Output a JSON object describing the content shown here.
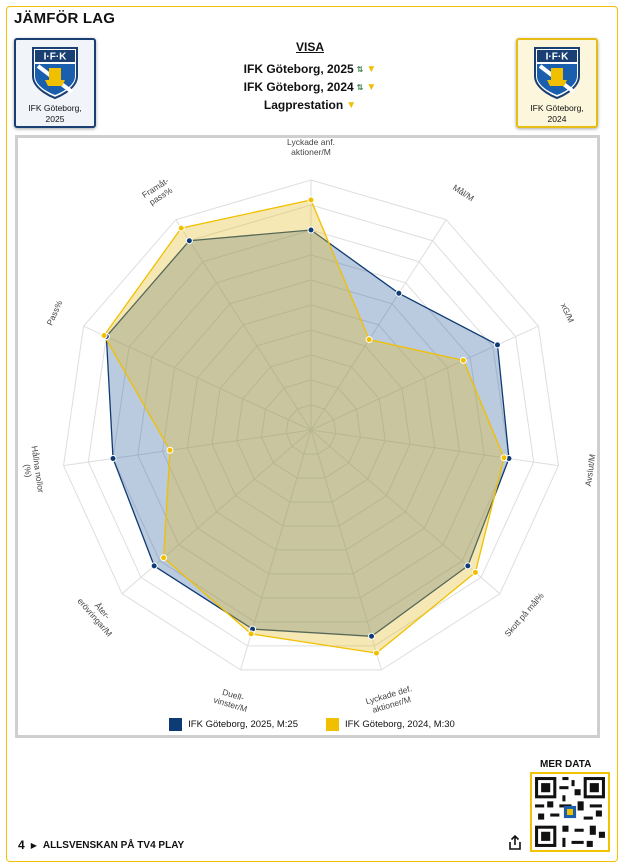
{
  "page": {
    "title": "JÄMFÖR LAG"
  },
  "teams": {
    "left": {
      "label": "IFK Göteborg, 2025",
      "crest_text": "I·F·K"
    },
    "right": {
      "label": "IFK Göteborg, 2024",
      "crest_text": "I·F·K"
    }
  },
  "visa": {
    "heading": "VISA",
    "rows": [
      {
        "label": "IFK Göteborg, 2025",
        "icon": "sort-icon"
      },
      {
        "label": "IFK Göteborg, 2024",
        "icon": "sort-icon"
      },
      {
        "label": "Lagprestation",
        "icon": "dropdown-icon"
      }
    ]
  },
  "chart_data": {
    "type": "radar",
    "axes": [
      "Lyckade anf. aktioner/M",
      "Mål/M",
      "xG/M",
      "Avslut/M",
      "Skott på mål%",
      "Lyckade def. aktioner/M",
      "Duell- vinster/M",
      "Åter- erövringar/M",
      "Hållna nollor (%)",
      "Pass%",
      "Framåt- pass%"
    ],
    "rmax": 10,
    "rings": 10,
    "series": [
      {
        "name": "IFK Göteborg, 2025",
        "color": "#0d3b73",
        "values": [
          8.0,
          6.5,
          8.2,
          8.0,
          8.3,
          8.6,
          8.3,
          8.3,
          8.0,
          9.0,
          9.0
        ]
      },
      {
        "name": "IFK Göteborg, 2024",
        "color": "#f0c000",
        "values": [
          9.2,
          4.3,
          6.7,
          7.8,
          8.7,
          9.3,
          8.5,
          7.8,
          5.7,
          9.1,
          9.6
        ]
      }
    ]
  },
  "legend": [
    {
      "label": "IFK Göteborg, 2025, M:25",
      "color": "#0d3b73"
    },
    {
      "label": "IFK Göteborg, 2024, M:30",
      "color": "#f0c000"
    }
  ],
  "qr": {
    "heading": "MER DATA"
  },
  "footer": {
    "brand_mark": "4",
    "label": "ALLSVENSKAN PÅ TV4 PLAY",
    "share_icon": "share-icon"
  }
}
